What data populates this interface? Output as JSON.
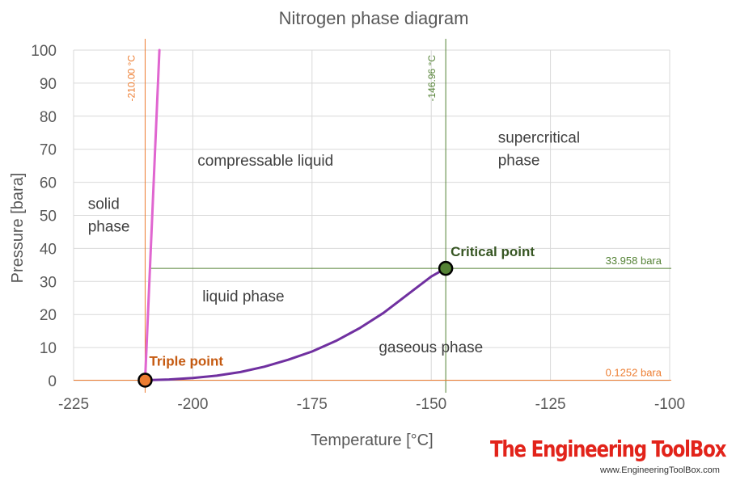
{
  "chart_data": {
    "type": "line",
    "title": "Nitrogen phase diagram",
    "xlabel": "Temperature [°C]",
    "ylabel": "Pressure [bara]",
    "xlim": [
      -225,
      -100
    ],
    "ylim": [
      0,
      100
    ],
    "x_ticks": [
      -225,
      -200,
      -175,
      -150,
      -125,
      -100
    ],
    "y_ticks": [
      0,
      10,
      20,
      30,
      40,
      50,
      60,
      70,
      80,
      90,
      100
    ],
    "grid": true,
    "series": [
      {
        "color": "#e066d0",
        "x": [
          -210.0,
          -207.0
        ],
        "y": [
          0.1252,
          100
        ]
      },
      {
        "color": "#7030a0",
        "x": [
          -210.0,
          -205,
          -200,
          -195,
          -190,
          -185,
          -180,
          -175,
          -170,
          -165,
          -160,
          -155,
          -150,
          -146.96
        ],
        "y": [
          0.1252,
          0.35,
          0.8,
          1.5,
          2.6,
          4.2,
          6.3,
          8.8,
          12.0,
          15.9,
          20.5,
          26.0,
          31.5,
          33.958
        ]
      }
    ],
    "points": [
      {
        "name": "Triple point",
        "x": -210.0,
        "y": 0.1252,
        "fill": "#ed7d31",
        "label_color": "#c55a11"
      },
      {
        "name": "Critical point",
        "x": -146.96,
        "y": 33.958,
        "fill": "#548235",
        "label_color": "#375623"
      }
    ],
    "reference_lines": [
      {
        "orientation": "vertical",
        "value": -210.0,
        "label": "-210.00 °C",
        "color": "#ed7d31"
      },
      {
        "orientation": "vertical",
        "value": -146.96,
        "label": "-146.96 °C",
        "color": "#548235"
      },
      {
        "orientation": "horizontal",
        "value": 33.958,
        "label": "33.958 bara",
        "color": "#548235"
      },
      {
        "orientation": "horizontal",
        "value": 0.1252,
        "label": "0.1252 bara",
        "color": "#ed7d31"
      }
    ],
    "annotations": [
      {
        "lines": [
          "solid",
          "phase"
        ],
        "x": -222,
        "y": 52
      },
      {
        "lines": [
          "compressable liquid"
        ],
        "x": -199,
        "y": 65
      },
      {
        "lines": [
          "liquid phase"
        ],
        "x": -198,
        "y": 24
      },
      {
        "lines": [
          "gaseous phase"
        ],
        "x": -161,
        "y": 8.5
      },
      {
        "lines": [
          "supercritical",
          "phase"
        ],
        "x": -136,
        "y": 72
      }
    ]
  },
  "branding": {
    "title": "The Engineering ToolBox",
    "url": "www.EngineeringToolBox.com"
  }
}
